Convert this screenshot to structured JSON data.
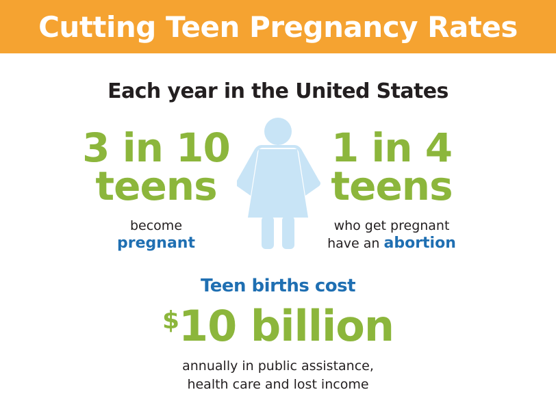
{
  "banner": {
    "title": "Cutting Teen Pregnancy Rates"
  },
  "subtitle": "Each year in the United States",
  "left_stat": {
    "headline_line1": "3 in 10",
    "headline_line2": "teens",
    "detail_line1": "become",
    "detail_highlight": "pregnant"
  },
  "right_stat": {
    "headline_line1": "1 in 4",
    "headline_line2": "teens",
    "detail_line1": "who get pregnant",
    "detail_line2_prefix": "have an ",
    "detail_highlight": "abortion"
  },
  "figure": {
    "icon": "female-person-icon"
  },
  "cost": {
    "label": "Teen births cost",
    "currency_symbol": "$",
    "amount": "10 billion",
    "note_line1": "annually in public assistance,",
    "note_line2": "health care and lost income"
  },
  "colors": {
    "banner": "#f5a331",
    "green": "#8cb63c",
    "blue": "#1f6fb2",
    "figure": "#c8e4f6",
    "text": "#231f20"
  }
}
